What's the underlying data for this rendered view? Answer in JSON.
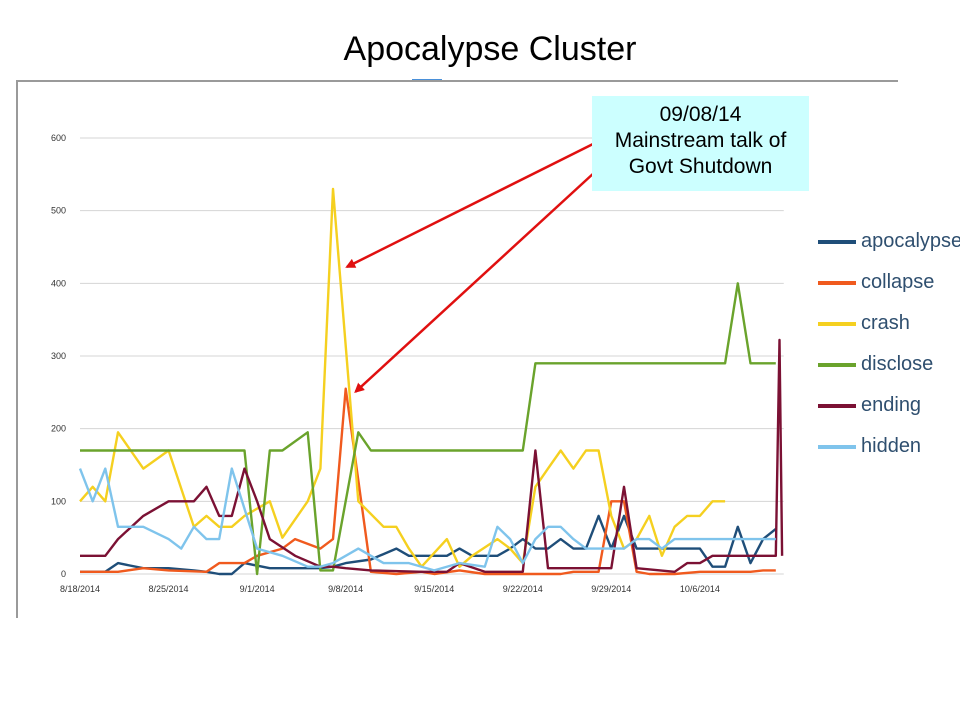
{
  "title": "Apocalypse Cluster",
  "annotation": {
    "lines": [
      "09/08/14",
      "Mainstream talk of",
      "Govt Shutdown"
    ],
    "background": "#ccffff",
    "arrow_color": "#e01010"
  },
  "chart_data": {
    "type": "line",
    "x_tick_labels": [
      "8/18/2014",
      "8/25/2014",
      "9/1/2014",
      "9/8/2014",
      "9/15/2014",
      "9/22/2014",
      "9/29/2014",
      "10/6/2014"
    ],
    "y_tick_labels": [
      "0",
      "100",
      "200",
      "300",
      "400",
      "500",
      "600"
    ],
    "ylim": [
      0,
      600
    ],
    "grid": true,
    "legend_position": "right",
    "annotated_date": "9/8/2014",
    "series": [
      {
        "name": "apocalypse",
        "color": "#1f4e79",
        "points": [
          [
            0,
            3
          ],
          [
            2,
            3
          ],
          [
            3,
            15
          ],
          [
            5,
            8
          ],
          [
            7,
            8
          ],
          [
            9,
            5
          ],
          [
            10,
            3
          ],
          [
            11,
            0
          ],
          [
            12,
            0
          ],
          [
            13,
            15
          ],
          [
            15,
            8
          ],
          [
            17,
            8
          ],
          [
            19,
            8
          ],
          [
            20,
            10
          ],
          [
            21,
            15
          ],
          [
            23,
            20
          ],
          [
            25,
            35
          ],
          [
            26,
            25
          ],
          [
            29,
            25
          ],
          [
            30,
            35
          ],
          [
            31,
            25
          ],
          [
            33,
            25
          ],
          [
            34,
            35
          ],
          [
            35,
            48
          ],
          [
            36,
            35
          ],
          [
            37,
            35
          ],
          [
            38,
            48
          ],
          [
            39,
            35
          ],
          [
            40,
            35
          ],
          [
            41,
            80
          ],
          [
            42,
            35
          ],
          [
            43,
            80
          ],
          [
            44,
            35
          ],
          [
            49,
            35
          ],
          [
            50,
            10
          ],
          [
            51,
            10
          ],
          [
            52,
            65
          ],
          [
            53,
            15
          ],
          [
            54,
            48
          ],
          [
            55,
            62
          ]
        ]
      },
      {
        "name": "collapse",
        "color": "#f05a1e",
        "points": [
          [
            0,
            3
          ],
          [
            3,
            3
          ],
          [
            5,
            8
          ],
          [
            7,
            5
          ],
          [
            10,
            3
          ],
          [
            11,
            15
          ],
          [
            13,
            15
          ],
          [
            14,
            25
          ],
          [
            16,
            35
          ],
          [
            17,
            48
          ],
          [
            19,
            35
          ],
          [
            20,
            48
          ],
          [
            21,
            255
          ],
          [
            23,
            3
          ],
          [
            25,
            0
          ],
          [
            27,
            3
          ],
          [
            28,
            0
          ],
          [
            30,
            5
          ],
          [
            32,
            0
          ],
          [
            35,
            0
          ],
          [
            37,
            0
          ],
          [
            38,
            0
          ],
          [
            39,
            3
          ],
          [
            41,
            3
          ],
          [
            42,
            100
          ],
          [
            43,
            100
          ],
          [
            44,
            3
          ],
          [
            45,
            0
          ],
          [
            47,
            0
          ],
          [
            49,
            3
          ],
          [
            51,
            3
          ],
          [
            53,
            3
          ],
          [
            54,
            5
          ],
          [
            55,
            5
          ]
        ]
      },
      {
        "name": "crash",
        "color": "#f5d020",
        "points": [
          [
            0,
            100
          ],
          [
            1,
            120
          ],
          [
            2,
            100
          ],
          [
            3,
            195
          ],
          [
            5,
            145
          ],
          [
            7,
            170
          ],
          [
            9,
            65
          ],
          [
            10,
            80
          ],
          [
            11,
            65
          ],
          [
            12,
            65
          ],
          [
            13,
            80
          ],
          [
            15,
            100
          ],
          [
            16,
            50
          ],
          [
            18,
            100
          ],
          [
            19,
            145
          ],
          [
            20,
            530
          ],
          [
            22,
            100
          ],
          [
            24,
            65
          ],
          [
            25,
            65
          ],
          [
            26,
            35
          ],
          [
            27,
            10
          ],
          [
            29,
            48
          ],
          [
            30,
            10
          ],
          [
            31,
            25
          ],
          [
            33,
            48
          ],
          [
            34,
            35
          ],
          [
            35,
            15
          ],
          [
            36,
            120
          ],
          [
            37,
            145
          ],
          [
            38,
            170
          ],
          [
            39,
            145
          ],
          [
            40,
            170
          ],
          [
            41,
            170
          ],
          [
            42,
            80
          ],
          [
            43,
            35
          ],
          [
            44,
            48
          ],
          [
            45,
            80
          ],
          [
            46,
            25
          ],
          [
            47,
            65
          ],
          [
            48,
            80
          ],
          [
            49,
            80
          ],
          [
            50,
            100
          ],
          [
            51,
            100
          ]
        ]
      },
      {
        "name": "disclose",
        "color": "#6aa32c",
        "points": [
          [
            0,
            170
          ],
          [
            13,
            170
          ],
          [
            14,
            0
          ],
          [
            15,
            170
          ],
          [
            16,
            170
          ],
          [
            18,
            195
          ],
          [
            19,
            5
          ],
          [
            20,
            5
          ],
          [
            22,
            195
          ],
          [
            23,
            170
          ],
          [
            34,
            170
          ],
          [
            35,
            170
          ],
          [
            36,
            290
          ],
          [
            51,
            290
          ],
          [
            52,
            400
          ],
          [
            53,
            290
          ],
          [
            55,
            290
          ]
        ]
      },
      {
        "name": "ending",
        "color": "#7b1134",
        "points": [
          [
            0,
            25
          ],
          [
            2,
            25
          ],
          [
            3,
            48
          ],
          [
            5,
            80
          ],
          [
            7,
            100
          ],
          [
            8,
            100
          ],
          [
            9,
            100
          ],
          [
            10,
            120
          ],
          [
            11,
            80
          ],
          [
            12,
            80
          ],
          [
            13,
            145
          ],
          [
            14,
            100
          ],
          [
            15,
            48
          ],
          [
            17,
            25
          ],
          [
            19,
            10
          ],
          [
            20,
            10
          ],
          [
            21,
            8
          ],
          [
            23,
            5
          ],
          [
            27,
            3
          ],
          [
            29,
            3
          ],
          [
            30,
            15
          ],
          [
            32,
            3
          ],
          [
            34,
            3
          ],
          [
            35,
            3
          ],
          [
            36,
            170
          ],
          [
            37,
            8
          ],
          [
            41,
            8
          ],
          [
            42,
            8
          ],
          [
            43,
            120
          ],
          [
            44,
            8
          ],
          [
            47,
            3
          ],
          [
            48,
            15
          ],
          [
            49,
            15
          ],
          [
            50,
            25
          ],
          [
            51,
            25
          ],
          [
            54,
            25
          ],
          [
            55,
            25
          ],
          [
            55.3,
            322
          ],
          [
            55.5,
            25
          ]
        ]
      },
      {
        "name": "hidden",
        "color": "#7fc4ec",
        "points": [
          [
            0,
            145
          ],
          [
            1,
            100
          ],
          [
            2,
            145
          ],
          [
            3,
            65
          ],
          [
            4,
            65
          ],
          [
            5,
            65
          ],
          [
            7,
            48
          ],
          [
            8,
            35
          ],
          [
            9,
            65
          ],
          [
            10,
            48
          ],
          [
            11,
            48
          ],
          [
            12,
            145
          ],
          [
            14,
            35
          ],
          [
            16,
            25
          ],
          [
            18,
            10
          ],
          [
            19,
            10
          ],
          [
            20,
            15
          ],
          [
            21,
            25
          ],
          [
            22,
            35
          ],
          [
            24,
            15
          ],
          [
            26,
            15
          ],
          [
            28,
            5
          ],
          [
            30,
            15
          ],
          [
            32,
            10
          ],
          [
            33,
            65
          ],
          [
            34,
            48
          ],
          [
            35,
            15
          ],
          [
            36,
            48
          ],
          [
            37,
            65
          ],
          [
            38,
            65
          ],
          [
            39,
            48
          ],
          [
            40,
            35
          ],
          [
            42,
            35
          ],
          [
            43,
            35
          ],
          [
            44,
            48
          ],
          [
            45,
            48
          ],
          [
            46,
            35
          ],
          [
            47,
            48
          ],
          [
            51,
            48
          ],
          [
            55,
            48
          ]
        ]
      }
    ]
  }
}
